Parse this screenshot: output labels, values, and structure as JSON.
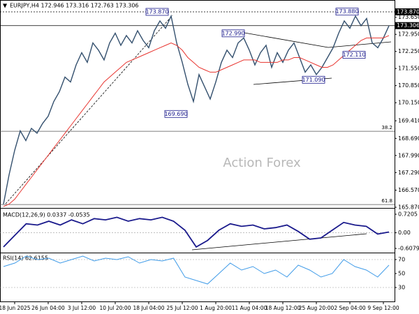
{
  "chart_data": [
    {
      "type": "line",
      "title": "EURJPY,H4 172.946 173.316 172.763 173.306",
      "watermark": "Action Forex",
      "categories": [
        null,
        null,
        "18 Jun 2025",
        null,
        null,
        null,
        null,
        null,
        "26 Jun 04:00",
        null,
        null,
        null,
        null,
        null,
        "3 Jul 12:00",
        null,
        null,
        null,
        null,
        null,
        "10 Jul 20:00",
        null,
        null,
        null,
        null,
        null,
        "18 Jul 04:00",
        null,
        null,
        null,
        null,
        null,
        "25 Jul 12:00",
        null,
        null,
        null,
        null,
        null,
        "1 Aug 20:00",
        null,
        null,
        null,
        null,
        null,
        "11 Aug 04:00",
        null,
        null,
        null,
        null,
        null,
        "18 Aug 12:00",
        null,
        null,
        null,
        null,
        null,
        "25 Aug 20:00",
        null,
        null,
        null,
        null,
        null,
        "2 Sep 04:00",
        null,
        null,
        null,
        null,
        null,
        "9 Sep 12:00",
        null
      ],
      "series": [
        {
          "name": "Price",
          "color": "#34506e",
          "values": [
            166.0,
            167.2,
            168.2,
            169.0,
            168.6,
            169.1,
            168.9,
            169.3,
            169.6,
            170.2,
            170.6,
            171.2,
            171.0,
            171.7,
            172.2,
            171.8,
            172.6,
            172.3,
            171.9,
            172.6,
            173.0,
            172.5,
            172.9,
            172.6,
            173.1,
            172.7,
            172.4,
            173.1,
            173.5,
            173.2,
            173.7,
            172.6,
            171.8,
            170.9,
            170.2,
            171.3,
            170.8,
            170.3,
            171.0,
            171.8,
            172.3,
            172.0,
            172.6,
            172.8,
            172.3,
            171.7,
            172.2,
            172.5,
            171.6,
            172.2,
            171.8,
            172.3,
            172.6,
            172.0,
            171.4,
            171.7,
            171.3,
            171.6,
            172.0,
            172.4,
            173.0,
            173.5,
            173.2,
            173.7,
            173.3,
            173.6,
            172.6,
            172.4,
            172.8,
            173.3
          ]
        },
        {
          "name": "MA",
          "color": "#e8342f",
          "values": [
            165.9,
            166.0,
            166.2,
            166.5,
            166.8,
            167.1,
            167.4,
            167.7,
            168.0,
            168.3,
            168.6,
            168.9,
            169.2,
            169.5,
            169.8,
            170.1,
            170.4,
            170.7,
            171.0,
            171.2,
            171.4,
            171.6,
            171.8,
            171.9,
            172.0,
            172.1,
            172.2,
            172.3,
            172.4,
            172.5,
            172.6,
            172.5,
            172.3,
            172.0,
            171.8,
            171.6,
            171.5,
            171.4,
            171.4,
            171.5,
            171.6,
            171.7,
            171.8,
            171.9,
            171.9,
            171.9,
            171.8,
            171.8,
            171.8,
            171.8,
            171.9,
            171.9,
            172.0,
            172.0,
            171.9,
            171.8,
            171.7,
            171.6,
            171.6,
            171.7,
            171.9,
            172.1,
            172.3,
            172.5,
            172.7,
            172.8,
            172.8,
            172.8,
            172.8,
            172.9
          ]
        }
      ],
      "ylim": [
        165.87,
        173.87
      ],
      "yticks": [
        {
          "value": 173.65,
          "label": "173.650"
        },
        {
          "value": 172.95,
          "label": "172.950"
        },
        {
          "value": 172.25,
          "label": "172.250"
        },
        {
          "value": 171.55,
          "label": "171.550"
        },
        {
          "value": 170.85,
          "label": "170.850"
        },
        {
          "value": 170.15,
          "label": "170.150"
        },
        {
          "value": 169.41,
          "label": "169.410"
        },
        {
          "value": 168.69,
          "label": "168.690"
        },
        {
          "value": 167.99,
          "label": "167.990"
        },
        {
          "value": 167.29,
          "label": "167.290"
        },
        {
          "value": 166.57,
          "label": "166.570"
        },
        {
          "value": 165.87,
          "label": "165.870"
        }
      ],
      "price_markers": [
        {
          "value": 173.87,
          "label": "173.870"
        },
        {
          "value": 173.306,
          "label": "173.306"
        }
      ],
      "fib_levels": [
        {
          "value": 168.98,
          "label": "38.2"
        },
        {
          "value": 165.98,
          "label": "61.8"
        }
      ],
      "annotations": [
        {
          "value": 173.87,
          "label": "173.870"
        },
        {
          "value": 169.69,
          "label": "169.690"
        },
        {
          "value": 172.99,
          "label": "172.990"
        },
        {
          "value": 171.09,
          "label": "171.090"
        },
        {
          "value": 173.88,
          "label": "173.880"
        },
        {
          "value": 172.11,
          "label": "172.110"
        }
      ]
    },
    {
      "type": "macd",
      "title": "MACD(12,26,9) 0.0337 -0.0535",
      "color": "#1a1a8c",
      "values": [
        -0.55,
        -0.1,
        0.35,
        0.3,
        0.45,
        0.3,
        0.5,
        0.35,
        0.55,
        0.5,
        0.6,
        0.45,
        0.55,
        0.5,
        0.6,
        0.45,
        0.1,
        -0.55,
        -0.3,
        0.1,
        0.35,
        0.25,
        0.3,
        0.15,
        0.2,
        0.3,
        0.05,
        -0.25,
        -0.2,
        0.1,
        0.4,
        0.3,
        0.25,
        -0.05,
        0.03
      ],
      "ylim": [
        -0.6079,
        0.7205
      ],
      "yticks": [
        0.7205,
        {
          "value": 0,
          "label": "0.00"
        },
        -0.6079
      ]
    },
    {
      "type": "rsi",
      "title": "RSI(14) 62.6155",
      "color": "#3f9be8",
      "values": [
        60,
        65,
        75,
        70,
        72,
        65,
        70,
        75,
        68,
        72,
        70,
        74,
        65,
        70,
        68,
        72,
        45,
        40,
        35,
        50,
        65,
        55,
        60,
        50,
        55,
        45,
        62,
        55,
        45,
        50,
        70,
        60,
        55,
        45,
        62
      ],
      "ylim": [
        10,
        79
      ],
      "yticks": [
        70,
        50,
        30
      ]
    }
  ]
}
